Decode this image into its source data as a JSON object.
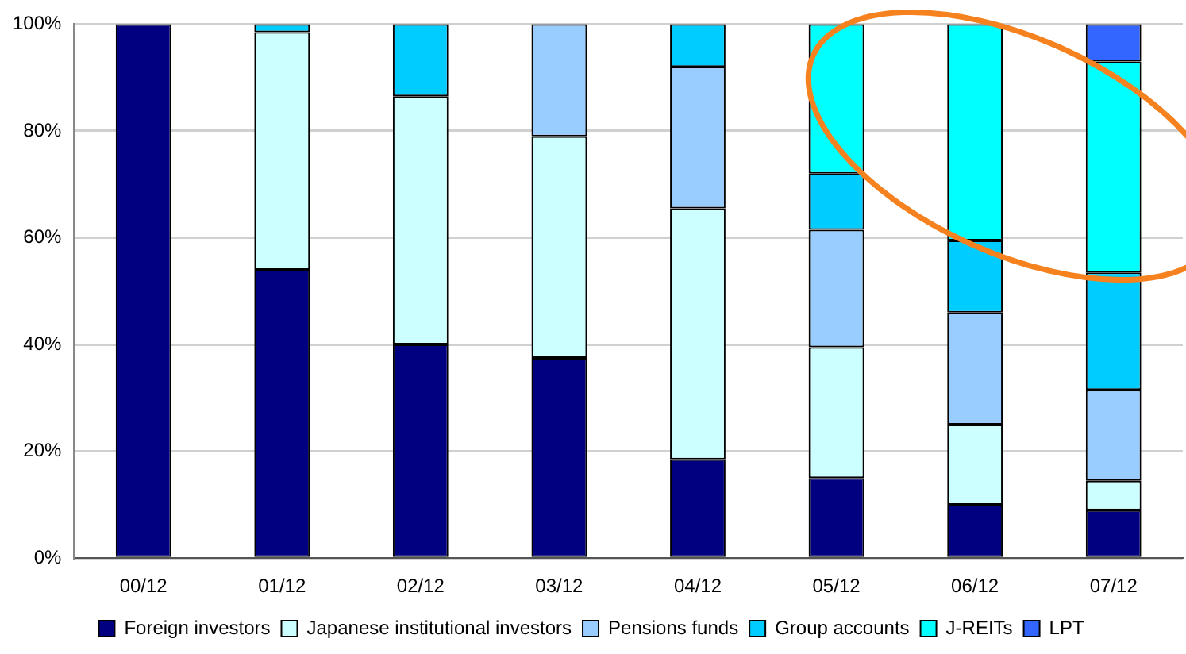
{
  "chart_data": {
    "type": "bar",
    "stacked": true,
    "categories": [
      "00/12",
      "01/12",
      "02/12",
      "03/12",
      "04/12",
      "05/12",
      "06/12",
      "07/12"
    ],
    "series": [
      {
        "name": "Foreign investors",
        "color": "#000080",
        "values": [
          100,
          54,
          40,
          37.5,
          18.5,
          15,
          10,
          9
        ]
      },
      {
        "name": "Japanese institutional investors",
        "color": "#ccffff",
        "values": [
          0,
          44.5,
          46.5,
          41.5,
          47,
          24.5,
          15,
          5.5
        ]
      },
      {
        "name": "Pensions funds",
        "color": "#99ccff",
        "values": [
          0,
          0,
          0,
          21,
          26.5,
          22,
          21,
          17
        ]
      },
      {
        "name": "Group accounts",
        "color": "#00ccff",
        "values": [
          0,
          1.5,
          13.5,
          0,
          8,
          10.5,
          13.5,
          22
        ]
      },
      {
        "name": "J-REITs",
        "color": "#00ffff",
        "values": [
          0,
          0,
          0,
          0,
          0,
          28,
          40.5,
          39.5
        ]
      },
      {
        "name": "LPT",
        "color": "#3366ff",
        "values": [
          0,
          0,
          0,
          0,
          0,
          0,
          0,
          7
        ]
      }
    ],
    "ylim": [
      0,
      100
    ],
    "yticks": [
      {
        "value": 0,
        "label": "0%"
      },
      {
        "value": 20,
        "label": "20%"
      },
      {
        "value": 40,
        "label": "40%"
      },
      {
        "value": 60,
        "label": "60%"
      },
      {
        "value": 80,
        "label": "80%"
      },
      {
        "value": 100,
        "label": "100%"
      }
    ],
    "grid": "y",
    "legend": "bottom"
  }
}
